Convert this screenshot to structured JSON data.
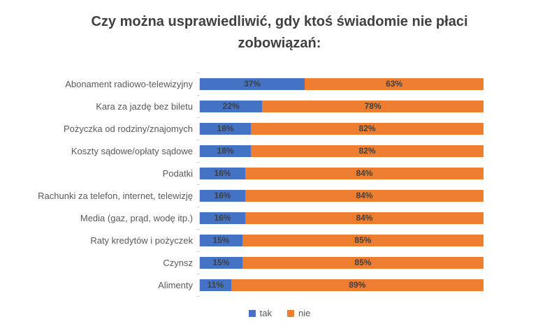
{
  "chart_data": {
    "type": "bar",
    "orientation": "horizontal-stacked",
    "title": "Czy można usprawiedliwić, gdy ktoś świadomie nie płaci zobowiązań:",
    "categories": [
      "Abonament radiowo-telewizyjny",
      "Kara za jazdę bez biletu",
      "Pożyczka od rodziny/znajomych",
      "Koszty sądowe/opłaty sądowe",
      "Podatki",
      "Rachunki za telefon, internet, telewizję",
      "Media (gaz, prąd, wodę itp.)",
      "Raty kredytów i pożyczek",
      "Czynsz",
      "Alimenty"
    ],
    "series": [
      {
        "name": "tak",
        "color": "#4472C4",
        "values": [
          37,
          22,
          18,
          18,
          16,
          16,
          16,
          15,
          15,
          11
        ]
      },
      {
        "name": "nie",
        "color": "#ED7D31",
        "values": [
          63,
          78,
          82,
          82,
          84,
          84,
          84,
          85,
          85,
          89
        ]
      }
    ],
    "value_format": "percent",
    "xlim": [
      0,
      100
    ],
    "data_labels": true,
    "legend_position": "bottom",
    "grid": false
  },
  "colors": {
    "title_text": "#404040",
    "category_text": "#595959",
    "data_label_text": "#404040",
    "axis_line": "#D9D9D9",
    "background": "#FFFFFF"
  }
}
